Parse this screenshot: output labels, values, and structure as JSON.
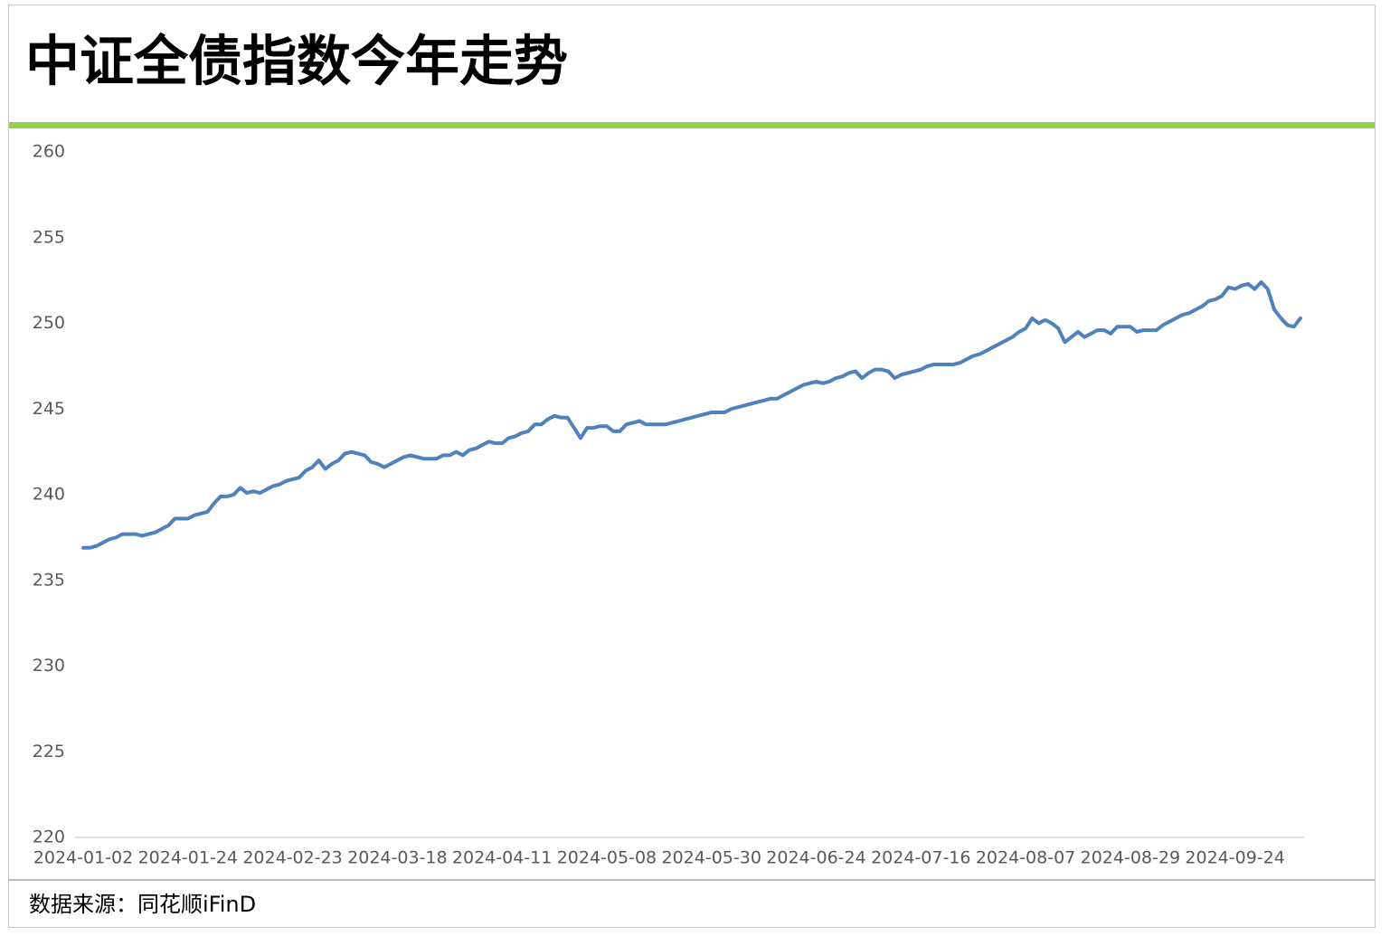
{
  "chart_data": {
    "type": "line",
    "title": "中证全债指数今年走势",
    "source": "数据来源：同花顺iFinD",
    "color": "#4f81bd",
    "grid": false,
    "ylim": [
      220,
      260
    ],
    "yticks": [
      220,
      225,
      230,
      235,
      240,
      245,
      250,
      255,
      260
    ],
    "categories": [
      "2024-01-02",
      null,
      null,
      null,
      null,
      null,
      null,
      null,
      null,
      null,
      null,
      null,
      null,
      null,
      null,
      null,
      "2024-01-24",
      null,
      null,
      null,
      null,
      null,
      null,
      null,
      null,
      null,
      null,
      null,
      null,
      null,
      null,
      null,
      "2024-02-23",
      null,
      null,
      null,
      null,
      null,
      null,
      null,
      null,
      null,
      null,
      null,
      null,
      null,
      null,
      null,
      "2024-03-18",
      null,
      null,
      null,
      null,
      null,
      null,
      null,
      null,
      null,
      null,
      null,
      null,
      null,
      null,
      null,
      "2024-04-11",
      null,
      null,
      null,
      null,
      null,
      null,
      null,
      null,
      null,
      null,
      null,
      null,
      null,
      null,
      null,
      "2024-05-08",
      null,
      null,
      null,
      null,
      null,
      null,
      null,
      null,
      null,
      null,
      null,
      null,
      null,
      null,
      null,
      "2024-05-30",
      null,
      null,
      null,
      null,
      null,
      null,
      null,
      null,
      null,
      null,
      null,
      null,
      null,
      null,
      null,
      "2024-06-24",
      null,
      null,
      null,
      null,
      null,
      null,
      null,
      null,
      null,
      null,
      null,
      null,
      null,
      null,
      null,
      "2024-07-16",
      null,
      null,
      null,
      null,
      null,
      null,
      null,
      null,
      null,
      null,
      null,
      null,
      null,
      null,
      null,
      "2024-08-07",
      null,
      null,
      null,
      null,
      null,
      null,
      null,
      null,
      null,
      null,
      null,
      null,
      null,
      null,
      null,
      "2024-08-29",
      null,
      null,
      null,
      null,
      null,
      null,
      null,
      null,
      null,
      null,
      null,
      null,
      null,
      null,
      null,
      "2024-09-24",
      null,
      null,
      null,
      null,
      null,
      null,
      null,
      null,
      null,
      null
    ],
    "values": [
      236.9,
      236.9,
      237.0,
      237.2,
      237.4,
      237.5,
      237.7,
      237.7,
      237.7,
      237.6,
      237.7,
      237.8,
      238.0,
      238.2,
      238.6,
      238.6,
      238.6,
      238.8,
      238.9,
      239.0,
      239.5,
      239.9,
      239.9,
      240.0,
      240.4,
      240.1,
      240.2,
      240.1,
      240.3,
      240.5,
      240.6,
      240.8,
      240.9,
      241.0,
      241.4,
      241.6,
      242.0,
      241.5,
      241.8,
      242.0,
      242.4,
      242.5,
      242.4,
      242.3,
      241.9,
      241.8,
      241.6,
      241.8,
      242.0,
      242.2,
      242.3,
      242.2,
      242.1,
      242.1,
      242.1,
      242.3,
      242.3,
      242.5,
      242.3,
      242.6,
      242.7,
      242.9,
      243.1,
      243.0,
      243.0,
      243.3,
      243.4,
      243.6,
      243.7,
      244.1,
      244.1,
      244.4,
      244.6,
      244.5,
      244.5,
      243.9,
      243.3,
      243.9,
      243.9,
      244.0,
      244.0,
      243.7,
      243.7,
      244.1,
      244.2,
      244.3,
      244.1,
      244.1,
      244.1,
      244.1,
      244.2,
      244.3,
      244.4,
      244.5,
      244.6,
      244.7,
      244.8,
      244.8,
      244.8,
      245.0,
      245.1,
      245.2,
      245.3,
      245.4,
      245.5,
      245.6,
      245.6,
      245.8,
      246.0,
      246.2,
      246.4,
      246.5,
      246.6,
      246.5,
      246.6,
      246.8,
      246.9,
      247.1,
      247.2,
      246.8,
      247.1,
      247.3,
      247.3,
      247.2,
      246.8,
      247.0,
      247.1,
      247.2,
      247.3,
      247.5,
      247.6,
      247.6,
      247.6,
      247.6,
      247.7,
      247.9,
      248.1,
      248.2,
      248.4,
      248.6,
      248.8,
      249.0,
      249.2,
      249.5,
      249.7,
      250.3,
      250.0,
      250.2,
      250.0,
      249.7,
      248.9,
      249.2,
      249.5,
      249.2,
      249.4,
      249.6,
      249.6,
      249.4,
      249.8,
      249.8,
      249.8,
      249.5,
      249.6,
      249.6,
      249.6,
      249.9,
      250.1,
      250.3,
      250.5,
      250.6,
      250.8,
      251.0,
      251.3,
      251.4,
      251.6,
      252.1,
      252.0,
      252.2,
      252.3,
      252.0,
      252.4,
      252.0,
      250.8,
      250.3,
      249.9,
      249.8,
      250.3
    ]
  }
}
